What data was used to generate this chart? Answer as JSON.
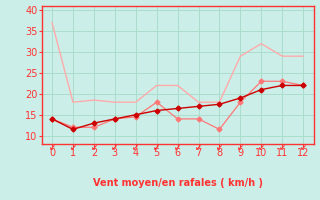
{
  "x": [
    0,
    1,
    2,
    3,
    4,
    5,
    6,
    7,
    8,
    9,
    10,
    11,
    12
  ],
  "line1_y": [
    37,
    18,
    18.5,
    18,
    18,
    22,
    22,
    18,
    18,
    29,
    32,
    29,
    29
  ],
  "line2_y": [
    14,
    12,
    12,
    14,
    14.5,
    18,
    14,
    14,
    11.5,
    18,
    23,
    23,
    22
  ],
  "line3_y": [
    14,
    11.5,
    13,
    14,
    15,
    16,
    16.5,
    17,
    17.5,
    19,
    21,
    22,
    22
  ],
  "line1_color": "#ffaaaa",
  "line2_color": "#ff7777",
  "line3_color": "#cc0000",
  "bg_color": "#cceee8",
  "grid_color": "#aaddcc",
  "spine_color": "#ff3333",
  "xlabel": "Vent moyen/en rafales ( km/h )",
  "xlabel_color": "#ff3333",
  "tick_color": "#ff3333",
  "arrow_color": "#ff3333",
  "ylim": [
    8,
    41
  ],
  "xlim": [
    -0.5,
    12.5
  ],
  "yticks": [
    10,
    15,
    20,
    25,
    30,
    35,
    40
  ],
  "xticks": [
    0,
    1,
    2,
    3,
    4,
    5,
    6,
    7,
    8,
    9,
    10,
    11,
    12
  ],
  "tick_fontsize": 7,
  "xlabel_fontsize": 7
}
